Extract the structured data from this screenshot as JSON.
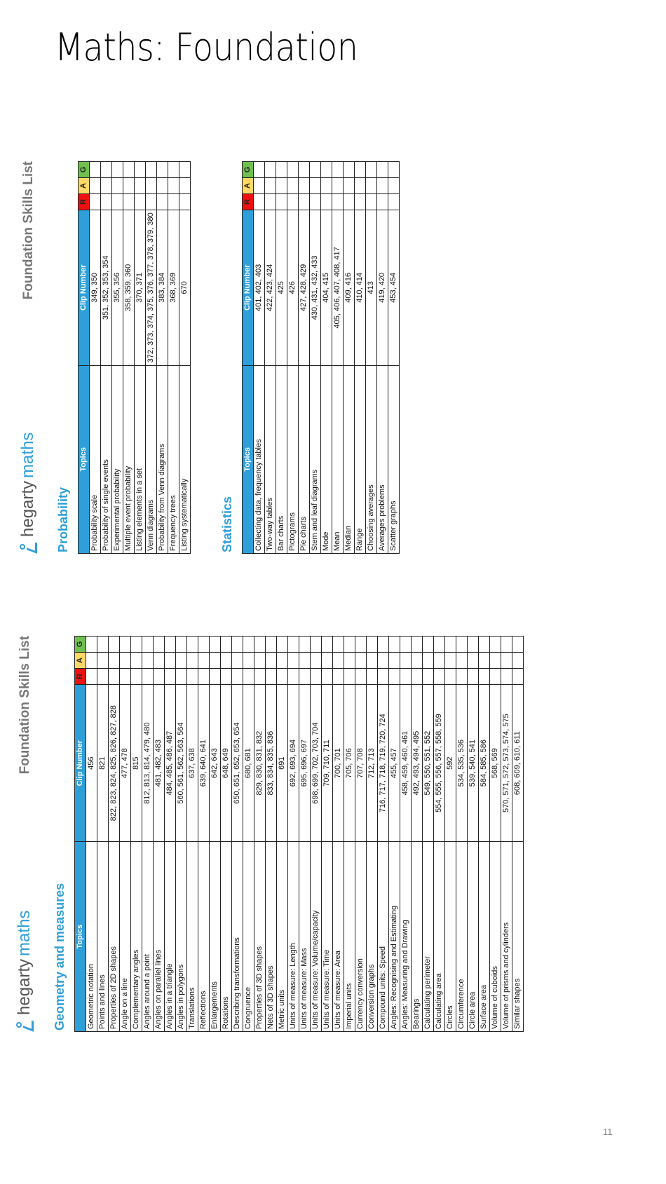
{
  "page": {
    "title": "Maths: Foundation",
    "page_number": "11"
  },
  "brand": {
    "logo_prefix": "hegarty",
    "logo_suffix": "maths",
    "sheet_title": "Foundation Skills List"
  },
  "table_headers": {
    "topics": "Topics",
    "clip_number": "Clip Number",
    "r": "R",
    "a": "A",
    "g": "G"
  },
  "colors": {
    "header_blue": "#2e9fd9",
    "red": "#ee1111",
    "amber": "#ffd966",
    "green": "#70c050"
  },
  "probability": {
    "title": "Probability",
    "rows": [
      {
        "topic": "Probability scale",
        "clips": "349, 350"
      },
      {
        "topic": "Probability of single events",
        "clips": "351, 352, 353, 354"
      },
      {
        "topic": "Experimental probability",
        "clips": "355, 356"
      },
      {
        "topic": "Multiple event probability",
        "clips": "358, 359, 360"
      },
      {
        "topic": "Listing elements in a set",
        "clips": "370, 371"
      },
      {
        "topic": "Venn diagrams",
        "clips": "372, 373, 374, 375, 376, 377, 378, 379, 380"
      },
      {
        "topic": "Probability from Venn diagrams",
        "clips": "383, 384"
      },
      {
        "topic": "Frequency trees",
        "clips": "368, 369"
      },
      {
        "topic": "Listing systematically",
        "clips": "670"
      }
    ]
  },
  "statistics": {
    "title": "Statistics",
    "rows": [
      {
        "topic": "Collecting data, frequency tables",
        "clips": "401, 402, 403"
      },
      {
        "topic": "Two-way tables",
        "clips": "422, 423, 424"
      },
      {
        "topic": "Bar charts",
        "clips": "425"
      },
      {
        "topic": "Pictograms",
        "clips": "426"
      },
      {
        "topic": "Pie charts",
        "clips": "427, 428, 429"
      },
      {
        "topic": "Stem and leaf diagrams",
        "clips": "430, 431, 432, 433"
      },
      {
        "topic": "Mode",
        "clips": "404, 415"
      },
      {
        "topic": "Mean",
        "clips": "405, 406, 407, 408, 417"
      },
      {
        "topic": "Median",
        "clips": "409, 416"
      },
      {
        "topic": "Range",
        "clips": "410, 414"
      },
      {
        "topic": "Choosing averages",
        "clips": "413"
      },
      {
        "topic": "Averages problems",
        "clips": "419, 420"
      },
      {
        "topic": "Scatter graphs",
        "clips": "453, 454"
      }
    ]
  },
  "geometry": {
    "title": "Geometry and measures",
    "rows": [
      {
        "topic": "Geometric notation",
        "clips": "456"
      },
      {
        "topic": "Points and lines",
        "clips": "821"
      },
      {
        "topic": "Properties of 2D shapes",
        "clips": "822, 823, 824, 825, 826, 827, 828"
      },
      {
        "topic": "Angle on a line",
        "clips": "477, 478"
      },
      {
        "topic": "Complementary angles",
        "clips": "815"
      },
      {
        "topic": "Angles around a point",
        "clips": "812, 813, 814, 479, 480"
      },
      {
        "topic": "Angles on parallel lines",
        "clips": "481, 482, 483"
      },
      {
        "topic": "Angles in a triangle",
        "clips": "484, 485, 486, 487"
      },
      {
        "topic": "Angles in polygons",
        "clips": "560, 561, 562, 563, 564"
      },
      {
        "topic": "Translations",
        "clips": "637, 638"
      },
      {
        "topic": "Reflections",
        "clips": "639, 640, 641"
      },
      {
        "topic": "Enlargements",
        "clips": "642, 643"
      },
      {
        "topic": "Rotations",
        "clips": "648, 649"
      },
      {
        "topic": "Describing transformations",
        "clips": "650, 651, 652, 653, 654"
      },
      {
        "topic": "Congruence",
        "clips": "680, 681"
      },
      {
        "topic": "Properties of 3D shapes",
        "clips": "829, 830, 831, 832"
      },
      {
        "topic": "Nets of 3D shapes",
        "clips": "833, 834, 835, 836"
      },
      {
        "topic": "Metric units",
        "clips": "691"
      },
      {
        "topic": "Units of measure: Length",
        "clips": "692, 693, 694"
      },
      {
        "topic": "Units of measure: Mass",
        "clips": "695, 696, 697"
      },
      {
        "topic": "Units of measure: Volume/capacity",
        "clips": "698, 699, 702, 703, 704"
      },
      {
        "topic": "Units of measure: Time",
        "clips": "709, 710, 711"
      },
      {
        "topic": "Units of measure: Area",
        "clips": "700, 701"
      },
      {
        "topic": "Imperial units",
        "clips": "705, 706"
      },
      {
        "topic": "Currency conversion",
        "clips": "707, 708"
      },
      {
        "topic": "Conversion graphs",
        "clips": "712, 713"
      },
      {
        "topic": "Compound units: Speed",
        "clips": "716, 717, 718, 719, 720, 724"
      },
      {
        "topic": "Angles: Recognising and Estimating",
        "clips": "455, 457"
      },
      {
        "topic": "Angles: Measuring and Drawing",
        "clips": "458, 459, 460, 461"
      },
      {
        "topic": "Bearings",
        "clips": "492, 493, 494, 495"
      },
      {
        "topic": "Calculating perimeter",
        "clips": "549, 550, 551, 552"
      },
      {
        "topic": "Calculating area",
        "clips": "554, 555, 556, 557, 558, 559"
      },
      {
        "topic": "Circles",
        "clips": "592"
      },
      {
        "topic": "Circumference",
        "clips": "534, 535, 536"
      },
      {
        "topic": "Circle area",
        "clips": "539, 540, 541"
      },
      {
        "topic": "Surface area",
        "clips": "584, 585, 586"
      },
      {
        "topic": "Volume of cuboids",
        "clips": "568, 569"
      },
      {
        "topic": "Volume of prisms and cylinders",
        "clips": "570, 571, 572, 573, 574, 575"
      },
      {
        "topic": "Similar shapes",
        "clips": "608, 609, 610, 611"
      }
    ]
  }
}
